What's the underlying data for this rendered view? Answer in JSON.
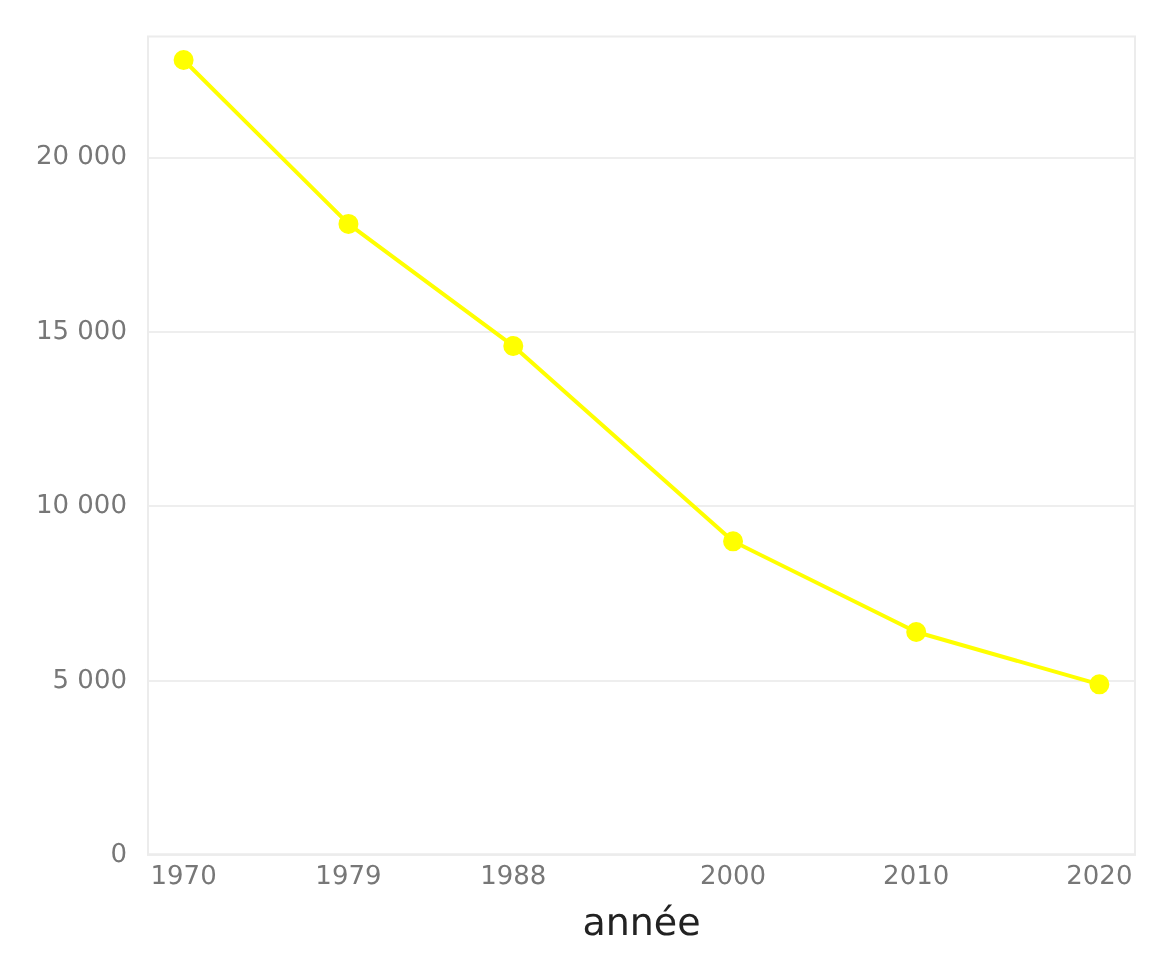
{
  "chart_data": {
    "type": "line",
    "xlabel": "année",
    "x": [
      1970,
      1979,
      1988,
      2000,
      2010,
      2020
    ],
    "series": [
      {
        "color": "#ffff00",
        "values": [
          22800,
          18100,
          14600,
          9000,
          6400,
          4900
        ]
      }
    ],
    "xlim": [
      1968,
      2022
    ],
    "xticks": [
      1970,
      1979,
      1988,
      2000,
      2010,
      2020
    ],
    "ylim": [
      0,
      23500
    ],
    "yticks": [
      0,
      {
        "value": 5000,
        "label": "5 000"
      },
      {
        "value": 10000,
        "label": "10 000"
      },
      {
        "value": 15000,
        "label": "15 000"
      },
      {
        "value": 20000,
        "label": "20 000"
      }
    ],
    "grid": "y",
    "legend": false,
    "marker": "circle",
    "line_style": "solid"
  }
}
